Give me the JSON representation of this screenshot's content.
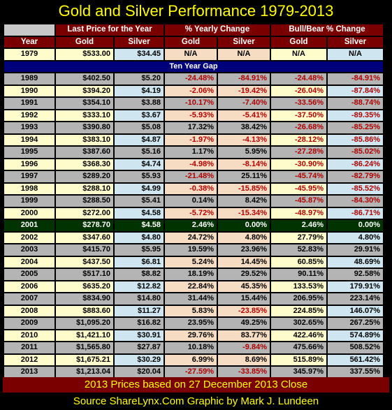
{
  "title": "Gold and Silver Performance 1979-2013",
  "headers": {
    "group1": "Last Price for the Year",
    "group2": "% Yearly Change",
    "group3": "Bull/Bear % Change",
    "year": "Year",
    "gold": "Gold",
    "silver": "Silver"
  },
  "gap_label": "Ten Year Gap",
  "colors": {
    "header_bg": "#7a0000",
    "gap_bg": "#00007a",
    "highlight_bg": "#003300",
    "title_color": "#ffff00",
    "negative_color": "#b00000"
  },
  "chart_data": {
    "type": "table",
    "title": "Gold and Silver Performance 1979-2013",
    "columns": [
      "Year",
      "Last Price Gold",
      "Last Price Silver",
      "% Yearly Change Gold",
      "% Yearly Change Silver",
      "Bull/Bear % Change Gold",
      "Bull/Bear % Change Silver"
    ],
    "rows": [
      [
        "1979",
        "$533.00",
        "$34.45",
        "N/A",
        "N/A",
        "N/A",
        "N/A"
      ],
      [
        "1989",
        "$402.50",
        "$5.20",
        "-24.48%",
        "-84.91%",
        "-24.48%",
        "-84.91%"
      ],
      [
        "1990",
        "$394.20",
        "$4.19",
        "-2.06%",
        "-19.42%",
        "-26.04%",
        "-87.84%"
      ],
      [
        "1991",
        "$354.10",
        "$3.88",
        "-10.17%",
        "-7.40%",
        "-33.56%",
        "-88.74%"
      ],
      [
        "1992",
        "$333.10",
        "$3.67",
        "-5.93%",
        "-5.41%",
        "-37.50%",
        "-89.35%"
      ],
      [
        "1993",
        "$390.80",
        "$5.08",
        "17.32%",
        "38.42%",
        "-26.68%",
        "-85.25%"
      ],
      [
        "1994",
        "$383.10",
        "$4.87",
        "-1.97%",
        "-4.13%",
        "-28.12%",
        "-85.86%"
      ],
      [
        "1995",
        "$387.60",
        "$5.16",
        "1.17%",
        "5.95%",
        "-27.28%",
        "-85.02%"
      ],
      [
        "1996",
        "$368.30",
        "$4.74",
        "-4.98%",
        "-8.14%",
        "-30.90%",
        "-86.24%"
      ],
      [
        "1997",
        "$289.20",
        "$5.93",
        "-21.48%",
        "25.11%",
        "-45.74%",
        "-82.79%"
      ],
      [
        "1998",
        "$288.10",
        "$4.99",
        "-0.38%",
        "-15.85%",
        "-45.95%",
        "-85.52%"
      ],
      [
        "1999",
        "$288.50",
        "$5.41",
        "0.14%",
        "8.42%",
        "-45.87%",
        "-84.30%"
      ],
      [
        "2000",
        "$272.00",
        "$4.58",
        "-5.72%",
        "-15.34%",
        "-48.97%",
        "-86.71%"
      ],
      [
        "2001",
        "$278.70",
        "$4.58",
        "2.46%",
        "0.00%",
        "2.46%",
        "0.00%"
      ],
      [
        "2002",
        "$347.60",
        "$4.80",
        "24.72%",
        "4.80%",
        "27.79%",
        "4.80%"
      ],
      [
        "2003",
        "$415.70",
        "$5.95",
        "19.59%",
        "23.96%",
        "52.83%",
        "29.91%"
      ],
      [
        "2004",
        "$437.50",
        "$6.81",
        "5.24%",
        "14.45%",
        "60.85%",
        "48.69%"
      ],
      [
        "2005",
        "$517.10",
        "$8.82",
        "18.19%",
        "29.52%",
        "90.11%",
        "92.58%"
      ],
      [
        "2006",
        "$635.20",
        "$12.82",
        "22.84%",
        "45.35%",
        "133.53%",
        "179.91%"
      ],
      [
        "2007",
        "$834.90",
        "$14.80",
        "31.44%",
        "15.44%",
        "206.95%",
        "223.14%"
      ],
      [
        "2008",
        "$883.60",
        "$11.27",
        "5.83%",
        "-23.85%",
        "224.85%",
        "146.07%"
      ],
      [
        "2009",
        "$1,095.20",
        "$16.82",
        "23.95%",
        "49.25%",
        "302.65%",
        "267.25%"
      ],
      [
        "2010",
        "$1,421.10",
        "$30.91",
        "29.76%",
        "83.77%",
        "422.46%",
        "574.89%"
      ],
      [
        "2011",
        "$1,565.80",
        "$27.87",
        "10.18%",
        "-9.84%",
        "475.66%",
        "508.52%"
      ],
      [
        "2012",
        "$1,675.21",
        "$30.29",
        "6.99%",
        "8.69%",
        "515.89%",
        "561.42%"
      ],
      [
        "2013",
        "$1,213.04",
        "$20.04",
        "-27.59%",
        "-33.85%",
        "345.97%",
        "337.55%"
      ]
    ],
    "highlight_row": "2001"
  },
  "footer": {
    "note": "2013 Prices based on 27 December 2013 Close",
    "source": "Source ShareLynx.Com  Graphic by Mark J. Lundeen"
  }
}
